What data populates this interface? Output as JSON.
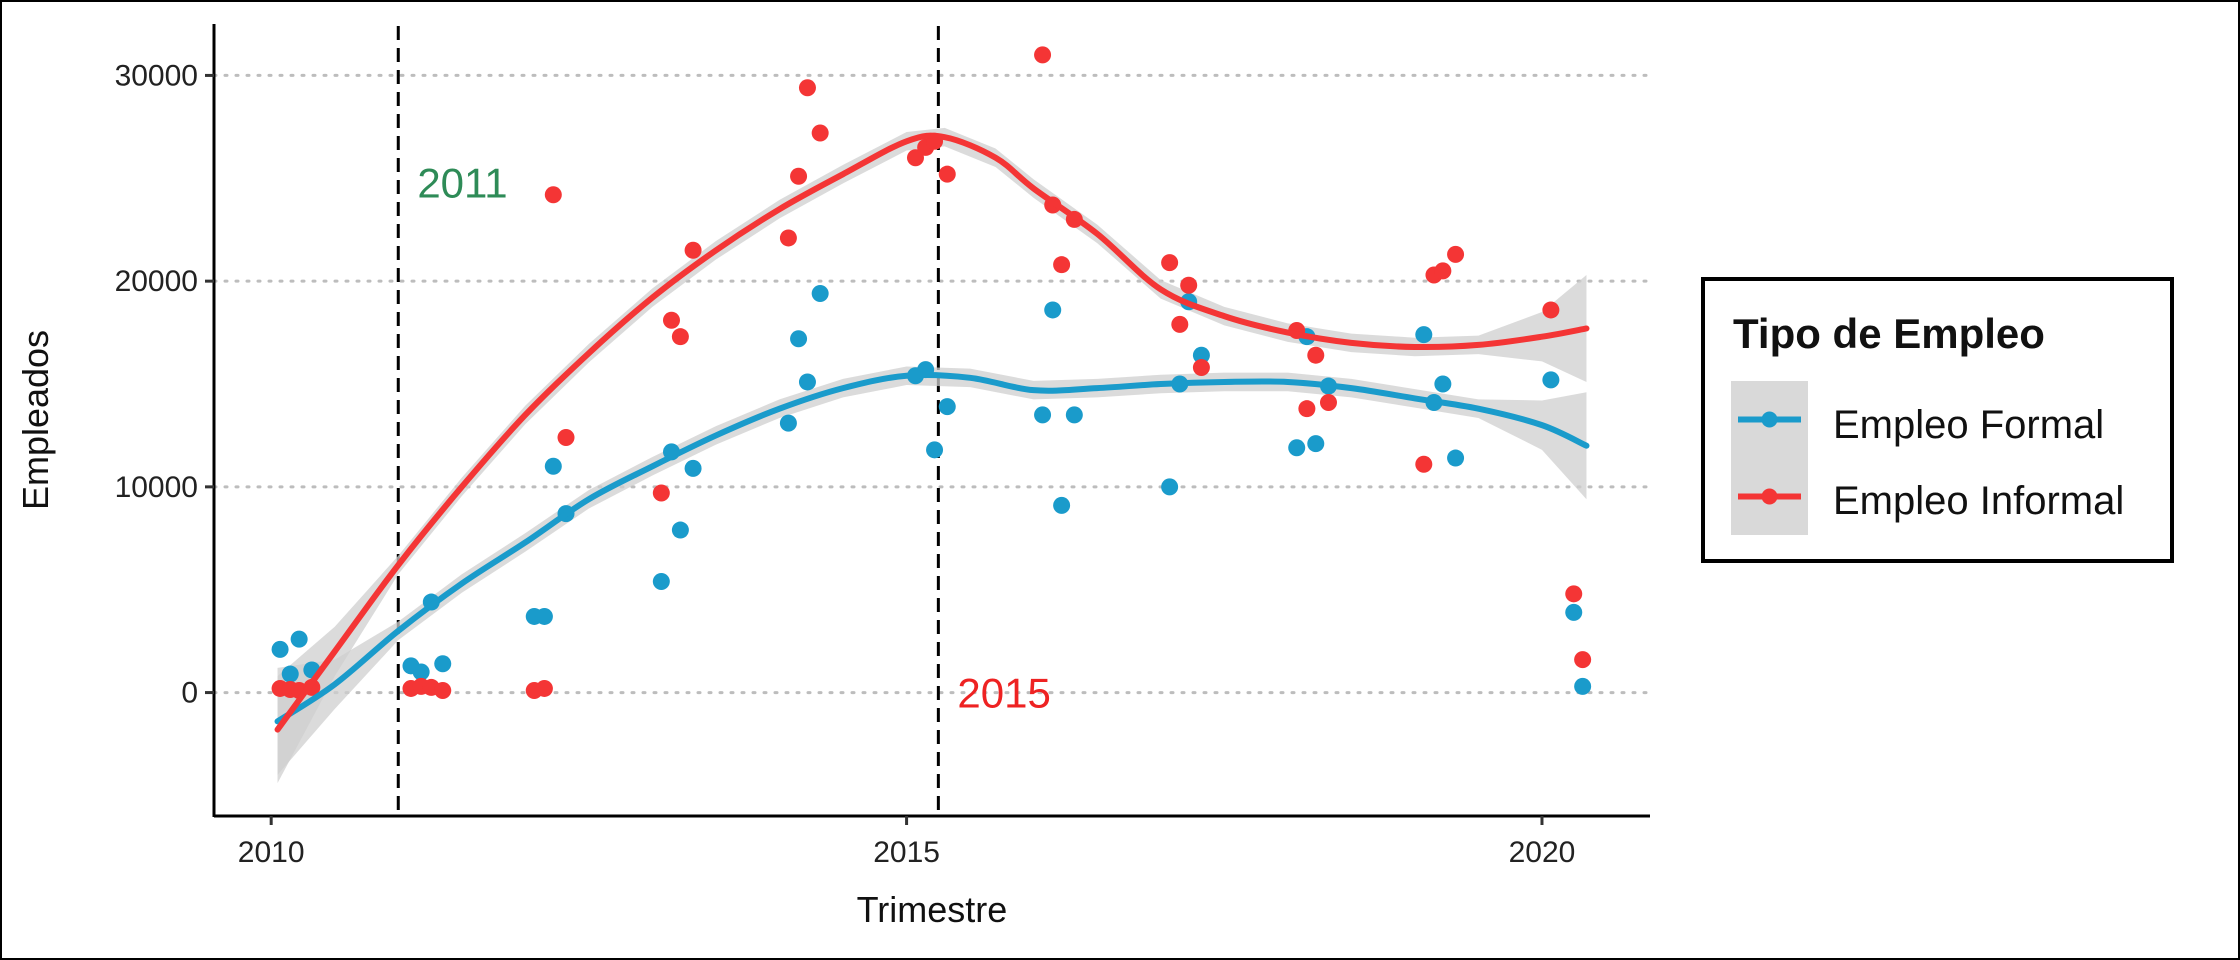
{
  "chart_data": {
    "type": "scatter",
    "xlabel": "Trimestre",
    "ylabel": "Empleados",
    "xlim": [
      2009.55,
      2020.85
    ],
    "ylim": [
      -6000,
      32500
    ],
    "x_ticks": [
      2010,
      2015,
      2020
    ],
    "x_tick_labels": [
      "2010",
      "2015",
      "2020"
    ],
    "y_ticks": [
      0,
      10000,
      20000,
      30000
    ],
    "y_tick_labels": [
      "0",
      "10000",
      "20000",
      "30000"
    ],
    "grid": "horizontal dotted",
    "legend": {
      "title": "Tipo de Empleo",
      "position": "right",
      "entries": [
        "Empleo Formal",
        "Empleo Informal"
      ]
    },
    "vlines": [
      {
        "x": 2011.0,
        "label": "2011",
        "label_x": 2011.15,
        "label_y": 24800,
        "color": "#2E8B57"
      },
      {
        "x": 2015.25,
        "label": "2015",
        "label_x": 2015.4,
        "label_y": 0,
        "color": "#EE2222"
      }
    ],
    "series": [
      {
        "name": "Empleo Formal",
        "color": "#1A9BCB",
        "points": [
          [
            2010.07,
            2100
          ],
          [
            2010.15,
            900
          ],
          [
            2010.22,
            2600
          ],
          [
            2010.32,
            1100
          ],
          [
            2011.1,
            1300
          ],
          [
            2011.18,
            1000
          ],
          [
            2011.26,
            4400
          ],
          [
            2011.35,
            1400
          ],
          [
            2012.07,
            3700
          ],
          [
            2012.15,
            3700
          ],
          [
            2012.22,
            11000
          ],
          [
            2012.32,
            8700
          ],
          [
            2013.07,
            5400
          ],
          [
            2013.15,
            11700
          ],
          [
            2013.22,
            7900
          ],
          [
            2013.32,
            10900
          ],
          [
            2014.07,
            13100
          ],
          [
            2014.15,
            17200
          ],
          [
            2014.22,
            15100
          ],
          [
            2014.32,
            19400
          ],
          [
            2015.07,
            15400
          ],
          [
            2015.15,
            15700
          ],
          [
            2015.22,
            11800
          ],
          [
            2015.32,
            13900
          ],
          [
            2016.07,
            13500
          ],
          [
            2016.15,
            18600
          ],
          [
            2016.22,
            9100
          ],
          [
            2016.32,
            13500
          ],
          [
            2017.07,
            10000
          ],
          [
            2017.15,
            15000
          ],
          [
            2017.22,
            19000
          ],
          [
            2017.32,
            16400
          ],
          [
            2018.07,
            11900
          ],
          [
            2018.15,
            17300
          ],
          [
            2018.22,
            12100
          ],
          [
            2018.32,
            14900
          ],
          [
            2019.07,
            17400
          ],
          [
            2019.15,
            14100
          ],
          [
            2019.22,
            15000
          ],
          [
            2019.32,
            11400
          ],
          [
            2020.07,
            15200
          ],
          [
            2020.25,
            3900
          ],
          [
            2020.32,
            300
          ]
        ],
        "smooth": [
          [
            2010.05,
            -1400
          ],
          [
            2010.5,
            400
          ],
          [
            2011,
            3000
          ],
          [
            2011.5,
            5300
          ],
          [
            2012,
            7300
          ],
          [
            2012.5,
            9400
          ],
          [
            2013,
            11000
          ],
          [
            2013.5,
            12500
          ],
          [
            2014,
            13800
          ],
          [
            2014.5,
            14800
          ],
          [
            2015,
            15400
          ],
          [
            2015.5,
            15300
          ],
          [
            2016,
            14700
          ],
          [
            2016.5,
            14800
          ],
          [
            2017,
            15000
          ],
          [
            2017.5,
            15100
          ],
          [
            2018,
            15100
          ],
          [
            2018.5,
            14800
          ],
          [
            2019,
            14300
          ],
          [
            2019.5,
            13800
          ],
          [
            2020,
            13000
          ],
          [
            2020.35,
            12000
          ]
        ]
      },
      {
        "name": "Empleo Informal",
        "color": "#F43535",
        "points": [
          [
            2010.07,
            200
          ],
          [
            2010.15,
            150
          ],
          [
            2010.22,
            100
          ],
          [
            2010.32,
            250
          ],
          [
            2011.1,
            200
          ],
          [
            2011.18,
            300
          ],
          [
            2011.26,
            250
          ],
          [
            2011.35,
            100
          ],
          [
            2012.07,
            100
          ],
          [
            2012.15,
            200
          ],
          [
            2012.22,
            24200
          ],
          [
            2012.32,
            12400
          ],
          [
            2013.07,
            9700
          ],
          [
            2013.15,
            18100
          ],
          [
            2013.22,
            17300
          ],
          [
            2013.32,
            21500
          ],
          [
            2014.07,
            22100
          ],
          [
            2014.15,
            25100
          ],
          [
            2014.22,
            29400
          ],
          [
            2014.32,
            27200
          ],
          [
            2015.07,
            26000
          ],
          [
            2015.15,
            26500
          ],
          [
            2015.22,
            26800
          ],
          [
            2015.32,
            25200
          ],
          [
            2016.07,
            31000
          ],
          [
            2016.15,
            23700
          ],
          [
            2016.22,
            20800
          ],
          [
            2016.32,
            23000
          ],
          [
            2017.07,
            20900
          ],
          [
            2017.15,
            17900
          ],
          [
            2017.22,
            19800
          ],
          [
            2017.32,
            15800
          ],
          [
            2018.07,
            17600
          ],
          [
            2018.15,
            13800
          ],
          [
            2018.22,
            16400
          ],
          [
            2018.32,
            14100
          ],
          [
            2019.07,
            11100
          ],
          [
            2019.15,
            20300
          ],
          [
            2019.22,
            20500
          ],
          [
            2019.32,
            21300
          ],
          [
            2020.07,
            18600
          ],
          [
            2020.25,
            4800
          ],
          [
            2020.32,
            1600
          ]
        ],
        "smooth": [
          [
            2010.05,
            -1800
          ],
          [
            2010.5,
            2000
          ],
          [
            2011,
            6200
          ],
          [
            2011.5,
            10000
          ],
          [
            2012,
            13500
          ],
          [
            2012.5,
            16500
          ],
          [
            2013,
            19200
          ],
          [
            2013.5,
            21500
          ],
          [
            2014,
            23500
          ],
          [
            2014.5,
            25200
          ],
          [
            2015,
            26800
          ],
          [
            2015.3,
            27000
          ],
          [
            2015.7,
            26000
          ],
          [
            2016,
            24500
          ],
          [
            2016.5,
            22300
          ],
          [
            2017,
            19600
          ],
          [
            2017.5,
            18300
          ],
          [
            2018,
            17500
          ],
          [
            2018.5,
            17000
          ],
          [
            2019,
            16800
          ],
          [
            2019.5,
            16900
          ],
          [
            2020,
            17300
          ],
          [
            2020.35,
            17700
          ]
        ]
      }
    ]
  }
}
